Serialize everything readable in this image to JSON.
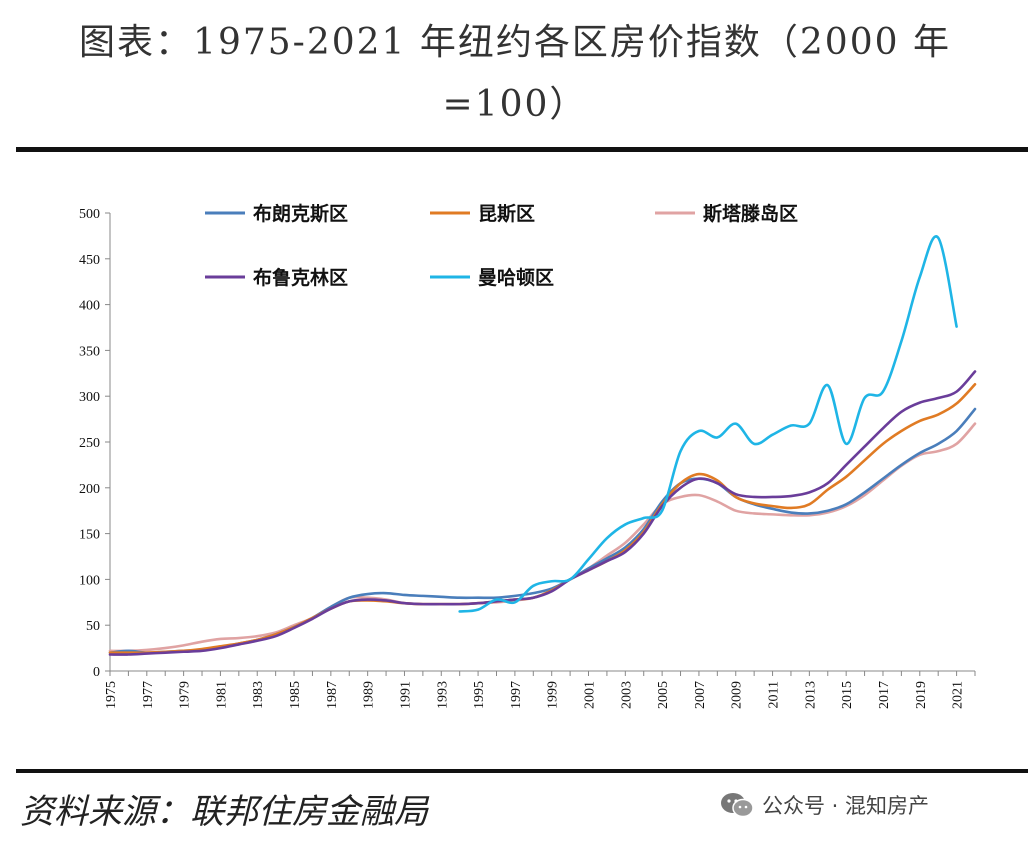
{
  "header": {
    "title_line1": "图表：1975-2021 年纽约各区房价指数（2000 年",
    "title_line2": "=100）"
  },
  "footer": {
    "source": "资料来源：联邦住房金融局",
    "watermark": "公众号 · 混知房产"
  },
  "chart_data": {
    "type": "line",
    "title": "1975-2021 年纽约各区房价指数（2000 年=100）",
    "xlabel": "",
    "ylabel": "",
    "xlim": [
      1975,
      2022
    ],
    "ylim": [
      0,
      500
    ],
    "yticks": [
      0,
      50,
      100,
      150,
      200,
      250,
      300,
      350,
      400,
      450,
      500
    ],
    "xticks": [
      1975,
      1977,
      1979,
      1981,
      1983,
      1985,
      1987,
      1989,
      1991,
      1993,
      1995,
      1997,
      1999,
      2001,
      2003,
      2005,
      2007,
      2009,
      2011,
      2013,
      2015,
      2017,
      2019,
      2021
    ],
    "legend_position": "top",
    "series": [
      {
        "name": "布朗克斯区",
        "color": "#4a7ebb",
        "x": [
          1975,
          1976,
          1977,
          1978,
          1979,
          1980,
          1981,
          1982,
          1983,
          1984,
          1985,
          1986,
          1987,
          1988,
          1989,
          1990,
          1991,
          1992,
          1993,
          1994,
          1995,
          1996,
          1997,
          1998,
          1999,
          2000,
          2001,
          2002,
          2003,
          2004,
          2005,
          2006,
          2007,
          2008,
          2009,
          2010,
          2011,
          2012,
          2013,
          2014,
          2015,
          2016,
          2017,
          2018,
          2019,
          2020,
          2021,
          2022
        ],
        "values": [
          20,
          22,
          20,
          21,
          22,
          23,
          26,
          30,
          34,
          40,
          48,
          58,
          70,
          80,
          84,
          85,
          83,
          82,
          81,
          80,
          80,
          80,
          82,
          85,
          90,
          100,
          112,
          123,
          135,
          155,
          185,
          205,
          210,
          205,
          190,
          182,
          177,
          173,
          172,
          175,
          182,
          195,
          210,
          225,
          238,
          248,
          262,
          286
        ]
      },
      {
        "name": "昆斯区",
        "color": "#e07b24",
        "x": [
          1975,
          1976,
          1977,
          1978,
          1979,
          1980,
          1981,
          1982,
          1983,
          1984,
          1985,
          1986,
          1987,
          1988,
          1989,
          1990,
          1991,
          1992,
          1993,
          1994,
          1995,
          1996,
          1997,
          1998,
          1999,
          2000,
          2001,
          2002,
          2003,
          2004,
          2005,
          2006,
          2007,
          2008,
          2009,
          2010,
          2011,
          2012,
          2013,
          2014,
          2015,
          2016,
          2017,
          2018,
          2019,
          2020,
          2021,
          2022
        ],
        "values": [
          20,
          20,
          20,
          21,
          22,
          24,
          27,
          30,
          34,
          40,
          48,
          58,
          68,
          76,
          77,
          76,
          74,
          73,
          73,
          73,
          74,
          76,
          78,
          80,
          88,
          100,
          110,
          120,
          132,
          152,
          182,
          205,
          215,
          208,
          190,
          183,
          180,
          178,
          182,
          198,
          212,
          230,
          248,
          262,
          273,
          280,
          292,
          313
        ]
      },
      {
        "name": "斯塔滕岛区",
        "color": "#e0a3a3",
        "x": [
          1975,
          1976,
          1977,
          1978,
          1979,
          1980,
          1981,
          1982,
          1983,
          1984,
          1985,
          1986,
          1987,
          1988,
          1989,
          1990,
          1991,
          1992,
          1993,
          1994,
          1995,
          1996,
          1997,
          1998,
          1999,
          2000,
          2001,
          2002,
          2003,
          2004,
          2005,
          2006,
          2007,
          2008,
          2009,
          2010,
          2011,
          2012,
          2013,
          2014,
          2015,
          2016,
          2017,
          2018,
          2019,
          2020,
          2021,
          2022
        ],
        "values": [
          22,
          22,
          23,
          25,
          28,
          32,
          35,
          36,
          38,
          42,
          50,
          58,
          70,
          80,
          80,
          78,
          74,
          73,
          73,
          73,
          74,
          75,
          77,
          80,
          88,
          100,
          112,
          126,
          140,
          160,
          182,
          190,
          192,
          185,
          175,
          172,
          171,
          170,
          170,
          173,
          180,
          192,
          208,
          224,
          236,
          240,
          248,
          270
        ]
      },
      {
        "name": "布鲁克林区",
        "color": "#6a3d9a",
        "x": [
          1975,
          1976,
          1977,
          1978,
          1979,
          1980,
          1981,
          1982,
          1983,
          1984,
          1985,
          1986,
          1987,
          1988,
          1989,
          1990,
          1991,
          1992,
          1993,
          1994,
          1995,
          1996,
          1997,
          1998,
          1999,
          2000,
          2001,
          2002,
          2003,
          2004,
          2005,
          2006,
          2007,
          2008,
          2009,
          2010,
          2011,
          2012,
          2013,
          2014,
          2015,
          2016,
          2017,
          2018,
          2019,
          2020,
          2021,
          2022
        ],
        "values": [
          18,
          18,
          19,
          20,
          21,
          22,
          25,
          29,
          33,
          38,
          47,
          57,
          68,
          76,
          78,
          77,
          74,
          73,
          73,
          73,
          74,
          76,
          78,
          80,
          87,
          100,
          110,
          120,
          130,
          150,
          180,
          200,
          210,
          205,
          193,
          190,
          190,
          191,
          195,
          205,
          225,
          245,
          265,
          283,
          293,
          298,
          305,
          327
        ]
      },
      {
        "name": "曼哈顿区",
        "color": "#1fb5e6",
        "x": [
          1994,
          1995,
          1996,
          1997,
          1998,
          1999,
          2000,
          2001,
          2002,
          2003,
          2004,
          2005,
          2006,
          2007,
          2008,
          2009,
          2010,
          2011,
          2012,
          2013,
          2014,
          2015,
          2016,
          2017,
          2018,
          2019,
          2020,
          2021
        ],
        "values": [
          65,
          67,
          78,
          75,
          93,
          98,
          100,
          122,
          145,
          160,
          167,
          175,
          240,
          262,
          255,
          270,
          248,
          258,
          268,
          270,
          312,
          248,
          298,
          305,
          360,
          430,
          473,
          376
        ]
      }
    ]
  }
}
